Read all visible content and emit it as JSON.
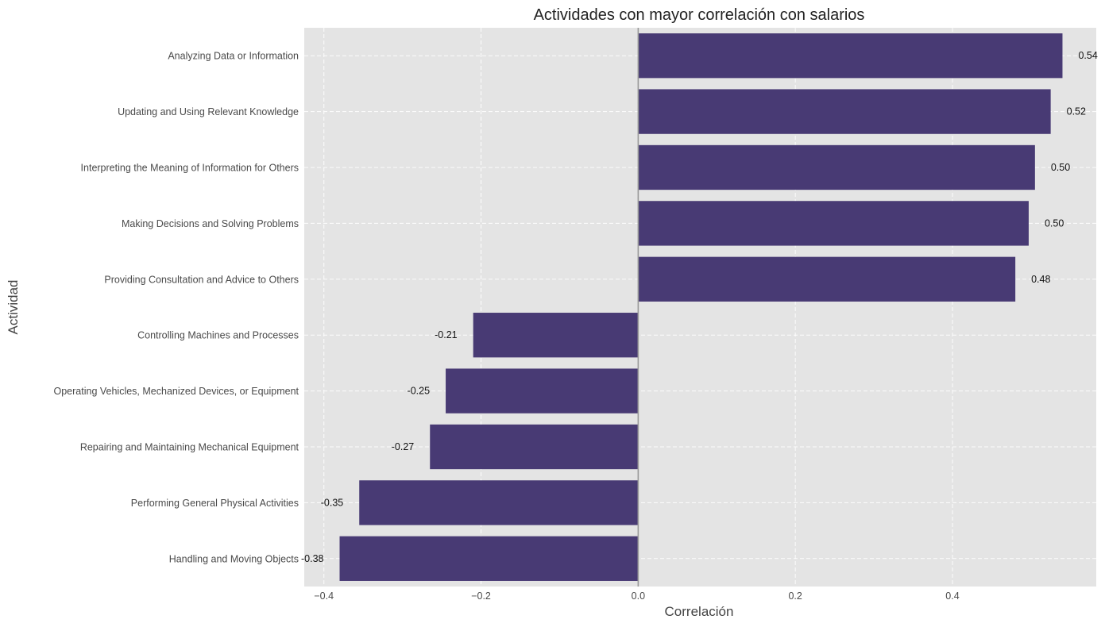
{
  "chart_data": {
    "type": "bar",
    "orientation": "horizontal",
    "title": "Actividades con mayor correlación con salarios",
    "xlabel": "Correlación",
    "ylabel": "Actividad",
    "categories": [
      "Analyzing Data or Information",
      "Updating and Using Relevant Knowledge",
      "Interpreting the Meaning of Information for Others",
      "Making Decisions and Solving Problems",
      "Providing Consultation and Advice to Others",
      "Controlling Machines and Processes",
      "Operating Vehicles, Mechanized Devices, or Equipment",
      "Repairing and Maintaining Mechanical Equipment",
      "Performing General Physical Activities",
      "Handling and Moving Objects"
    ],
    "values": [
      0.54,
      0.525,
      0.505,
      0.497,
      0.48,
      -0.21,
      -0.245,
      -0.265,
      -0.355,
      -0.38
    ],
    "value_labels": [
      "0.54",
      "0.52",
      "0.50",
      "0.50",
      "0.48",
      "-0.21",
      "-0.25",
      "-0.27",
      "-0.35",
      "-0.38"
    ],
    "xlim": [
      -0.425,
      0.583
    ],
    "xticks": [
      -0.4,
      -0.2,
      0.0,
      0.2,
      0.4
    ],
    "xtick_labels": [
      "−0.4",
      "−0.2",
      "0.0",
      "0.2",
      "0.4"
    ],
    "grid": true,
    "zero_line": true,
    "colors": {
      "bar": "#483a74",
      "plot_background": "#e4e4e4",
      "zero_line": "#999999"
    }
  }
}
